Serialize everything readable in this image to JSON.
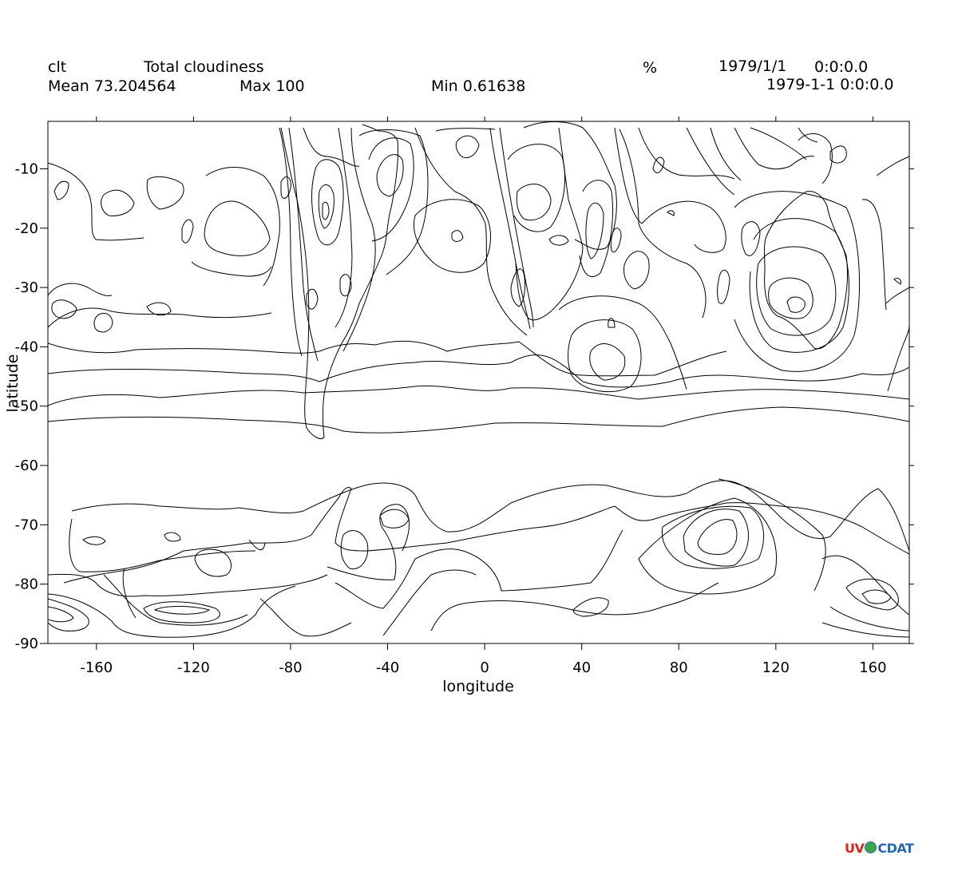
{
  "header": {
    "var_name": "clt",
    "long_name": "Total cloudiness",
    "units": "%",
    "date": "1979/1/1",
    "time": "0:0:0.0",
    "datetime": "1979-1-1 0:0:0.0",
    "mean": "Mean 73.204564",
    "max": "Max 100",
    "min": "Min 0.61638"
  },
  "axes": {
    "xlabel": "longitude",
    "ylabel": "latitude",
    "xticks": [
      "-160",
      "-120",
      "-80",
      "-40",
      "0",
      "40",
      "80",
      "120",
      "160"
    ],
    "xtick_values": [
      -160,
      -120,
      -80,
      -40,
      0,
      40,
      80,
      120,
      160
    ],
    "yticks": [
      "-10",
      "-20",
      "-30",
      "-40",
      "-50",
      "-60",
      "-70",
      "-80",
      "-90"
    ],
    "ytick_values": [
      -10,
      -20,
      -30,
      -40,
      -50,
      -60,
      -70,
      -80,
      -90
    ],
    "xlim": [
      -180,
      175
    ],
    "ylim": [
      -90,
      -2
    ]
  },
  "logo": {
    "uv": "UV",
    "cdat": "CDAT",
    "uv_color": "#d9261c",
    "cdat_color": "#2b66b1",
    "globe_color": "#3aa64b"
  },
  "chart_data": {
    "type": "contour",
    "title": "Total cloudiness",
    "xlabel": "longitude",
    "ylabel": "latitude",
    "xlim": [
      -180,
      175
    ],
    "ylim": [
      -90,
      -2
    ],
    "grid": false,
    "stats": {
      "mean": 73.204564,
      "max": 100,
      "min": 0.61638
    }
  }
}
